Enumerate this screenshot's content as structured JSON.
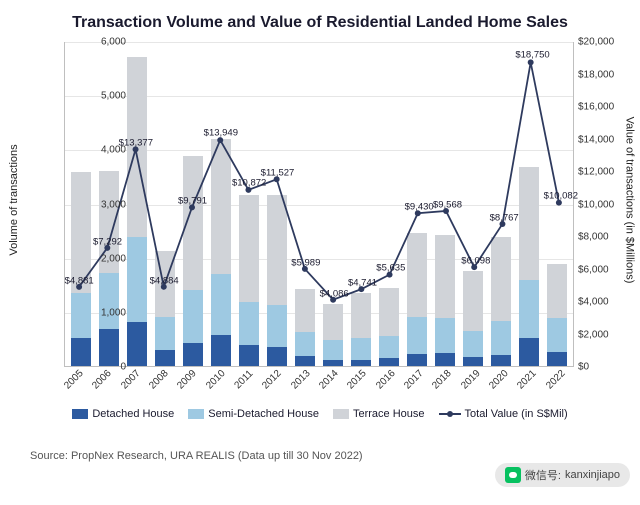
{
  "title": "Transaction Volume and Value of Residential Landed Home Sales",
  "chart": {
    "type": "stacked-bar-with-line",
    "categories": [
      "2005",
      "2006",
      "2007",
      "2008",
      "2009",
      "2010",
      "2011",
      "2012",
      "2013",
      "2014",
      "2015",
      "2016",
      "2017",
      "2018",
      "2019",
      "2020",
      "2021",
      "2022"
    ],
    "left_axis": {
      "label": "Volume of transactions",
      "min": 0,
      "max": 6000,
      "step": 1000
    },
    "right_axis": {
      "label": "Value of transactions (in $Millions)",
      "min": 0,
      "max": 20000,
      "step": 2000,
      "prefix": "$"
    },
    "series_bar": [
      {
        "name": "Detached House",
        "color": "#2c5aa0",
        "values": [
          520,
          680,
          820,
          300,
          420,
          580,
          380,
          350,
          180,
          120,
          120,
          140,
          230,
          240,
          170,
          210,
          520,
          250
        ]
      },
      {
        "name": "Semi-Detached House",
        "color": "#9ec9e2",
        "values": [
          820,
          1040,
          1560,
          600,
          980,
          1120,
          800,
          780,
          440,
          360,
          400,
          420,
          680,
          640,
          470,
          620,
          1060,
          640
        ]
      },
      {
        "name": "Terrace House",
        "color": "#d0d3d8",
        "values": [
          2240,
          1880,
          3320,
          1220,
          2480,
          2500,
          1970,
          2020,
          800,
          660,
          820,
          880,
          1540,
          1530,
          1120,
          1560,
          2100,
          1000
        ]
      }
    ],
    "series_line": {
      "name": "Total Value (in S$Mil)",
      "color": "#2e3a5e",
      "marker_fill": "#2e3a5e",
      "values": [
        4881,
        7292,
        13377,
        4884,
        9791,
        13949,
        10872,
        11527,
        5989,
        4086,
        4741,
        5635,
        9430,
        9568,
        6098,
        8767,
        18750,
        10082
      ],
      "label_fmt": "${v}"
    },
    "grid_color": "#e6e6e6",
    "background_color": "#ffffff"
  },
  "source": "Source: PropNex Research, URA REALIS (Data up till 30 Nov 2022)",
  "overlay": {
    "prefix": "微信号:",
    "id": "kanxinjiapo"
  }
}
